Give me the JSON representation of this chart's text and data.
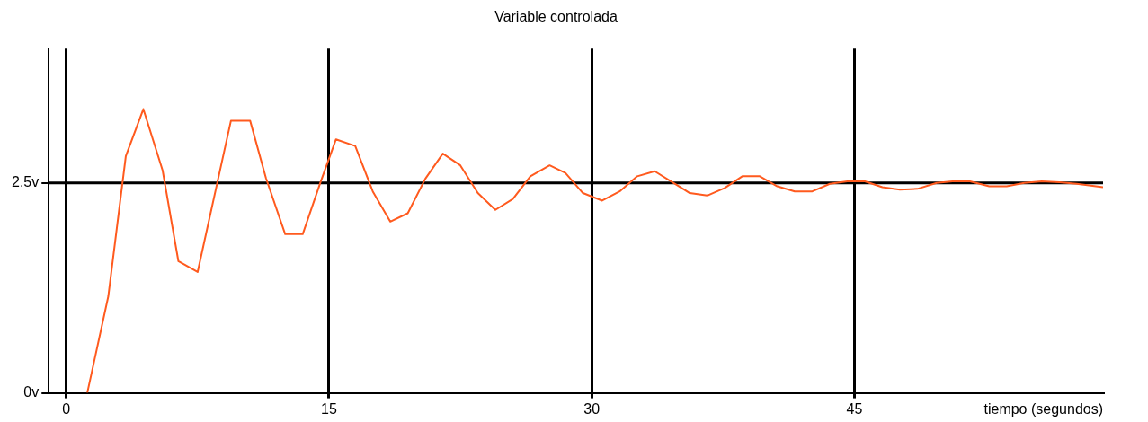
{
  "chart_data": {
    "type": "line",
    "title": "Variable controlada",
    "xlabel": "tiempo (segundos)",
    "xlim": [
      -1,
      59.2
    ],
    "xticks": [
      0,
      15,
      30,
      45
    ],
    "ylim": [
      0,
      4.1
    ],
    "yticks": [
      {
        "value": 0,
        "label": "0v"
      },
      {
        "value": 2.5,
        "label": "2.5v"
      }
    ],
    "grid": "x",
    "legend": false,
    "marker": "none",
    "line_style": "solid",
    "ref_lines": [
      {
        "axis": "y",
        "value": 2.5,
        "color": "#000000"
      }
    ],
    "series": [
      {
        "color": "#ff5a1e",
        "x": [
          1.2,
          2.4,
          3.4,
          4.4,
          5.5,
          6.4,
          7.5,
          9.4,
          10.5,
          11.4,
          12.5,
          13.5,
          14.5,
          15.4,
          16.5,
          17.5,
          18.5,
          19.5,
          20.5,
          21.5,
          22.5,
          23.5,
          24.5,
          25.5,
          26.5,
          27.6,
          28.5,
          29.5,
          30.6,
          31.6,
          32.6,
          33.6,
          34.6,
          35.6,
          36.6,
          37.6,
          38.6,
          39.6,
          40.6,
          41.6,
          42.6,
          43.6,
          44.6,
          45.6,
          46.6,
          47.6,
          48.6,
          49.7,
          50.6,
          51.6,
          52.7,
          53.7,
          54.7,
          55.7,
          56.7,
          57.7,
          59.2
        ],
        "values": [
          0,
          1.15,
          2.82,
          3.38,
          2.65,
          1.57,
          1.44,
          3.24,
          3.24,
          2.56,
          1.89,
          1.89,
          2.5,
          3.02,
          2.94,
          2.4,
          2.04,
          2.14,
          2.55,
          2.85,
          2.71,
          2.38,
          2.18,
          2.31,
          2.58,
          2.71,
          2.62,
          2.38,
          2.29,
          2.4,
          2.58,
          2.64,
          2.51,
          2.38,
          2.35,
          2.44,
          2.58,
          2.58,
          2.46,
          2.4,
          2.4,
          2.49,
          2.52,
          2.52,
          2.45,
          2.42,
          2.43,
          2.5,
          2.52,
          2.52,
          2.46,
          2.46,
          2.5,
          2.52,
          2.51,
          2.49,
          2.45
        ]
      }
    ]
  }
}
